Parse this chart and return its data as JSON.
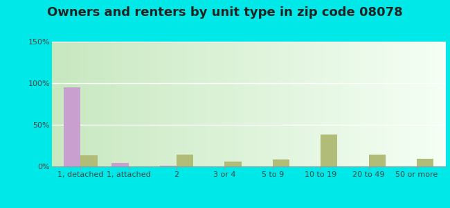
{
  "title": "Owners and renters by unit type in zip code 08078",
  "categories": [
    "1, detached",
    "1, attached",
    "2",
    "3 or 4",
    "5 to 9",
    "10 to 19",
    "20 to 49",
    "50 or more"
  ],
  "owner_values": [
    95,
    4,
    1,
    0,
    0,
    0,
    0,
    0
  ],
  "renter_values": [
    13,
    0,
    14,
    6,
    8,
    38,
    14,
    9
  ],
  "owner_color": "#c8a0d0",
  "renter_color": "#b0bc78",
  "ylim": [
    0,
    150
  ],
  "yticks": [
    0,
    50,
    100,
    150
  ],
  "ytick_labels": [
    "0%",
    "50%",
    "100%",
    "150%"
  ],
  "bar_width": 0.35,
  "grad_top": "#f5fff5",
  "grad_bottom": "#c8e8c0",
  "outer_background": "#00e8e8",
  "title_fontsize": 13,
  "axis_fontsize": 8,
  "legend_fontsize": 9
}
